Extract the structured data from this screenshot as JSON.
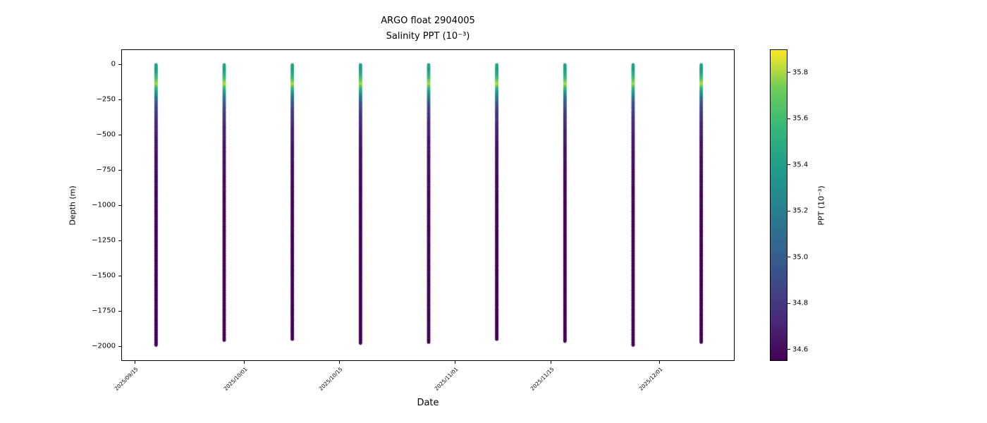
{
  "title": {
    "line1": "ARGO float 2904005",
    "line2": "Salinity PPT (10⁻³)"
  },
  "axes": {
    "x_label": "Date",
    "y_label": "Depth (m)",
    "x_ticks": [
      {
        "label": "2025/09/15",
        "day": 2
      },
      {
        "label": "2025/10/01",
        "day": 18
      },
      {
        "label": "2025/10/15",
        "day": 32
      },
      {
        "label": "2025/11/01",
        "day": 49
      },
      {
        "label": "2025/11/15",
        "day": 63
      },
      {
        "label": "2025/12/01",
        "day": 79
      }
    ],
    "y_ticks": [
      {
        "label": "0",
        "depth": 0
      },
      {
        "label": "−250",
        "depth": -250
      },
      {
        "label": "−500",
        "depth": -500
      },
      {
        "label": "−750",
        "depth": -750
      },
      {
        "label": "−1000",
        "depth": -1000
      },
      {
        "label": "−1250",
        "depth": -1250
      },
      {
        "label": "−1500",
        "depth": -1500
      },
      {
        "label": "−1750",
        "depth": -1750
      },
      {
        "label": "−2000",
        "depth": -2000
      }
    ]
  },
  "colorbar": {
    "label": "PPT (10⁻³)",
    "vmin": 34.55,
    "vmax": 35.9,
    "ticks": [
      {
        "label": "34.6",
        "value": 34.6
      },
      {
        "label": "34.8",
        "value": 34.8
      },
      {
        "label": "35.0",
        "value": 35.0
      },
      {
        "label": "35.2",
        "value": 35.2
      },
      {
        "label": "35.4",
        "value": 35.4
      },
      {
        "label": "35.6",
        "value": 35.6
      },
      {
        "label": "35.8",
        "value": 35.8
      }
    ]
  },
  "colors": {
    "background": "#ffffff",
    "text": "#000000",
    "axis": "#000000",
    "viridis_stops": [
      "#440154",
      "#482878",
      "#3e4a89",
      "#31688e",
      "#26828e",
      "#1f9e89",
      "#35b779",
      "#6dcd59",
      "#fde725"
    ]
  },
  "chart_data": {
    "type": "scatter",
    "title": "ARGO float 2904005",
    "subtitle": "Salinity PPT (10⁻³)",
    "xlabel": "Date",
    "ylabel": "Depth (m)",
    "colormap": "viridis",
    "vmin": 34.55,
    "vmax": 35.9,
    "x_range_days": [
      0,
      90
    ],
    "x_range_start_date": "2025/09/13",
    "y_range": [
      105,
      -2105
    ],
    "profiles": [
      {
        "date": "2025/09/18",
        "day": 5,
        "surface_depth": 0,
        "max_depth": -1990
      },
      {
        "date": "2025/09/28",
        "day": 15,
        "surface_depth": 0,
        "max_depth": -1955
      },
      {
        "date": "2025/10/08",
        "day": 25,
        "surface_depth": 0,
        "max_depth": -1950
      },
      {
        "date": "2025/10/18",
        "day": 35,
        "surface_depth": 0,
        "max_depth": -1975
      },
      {
        "date": "2025/10/28",
        "day": 45,
        "surface_depth": 0,
        "max_depth": -1970
      },
      {
        "date": "2025/11/07",
        "day": 55,
        "surface_depth": 0,
        "max_depth": -1950
      },
      {
        "date": "2025/11/17",
        "day": 65,
        "surface_depth": 0,
        "max_depth": -1965
      },
      {
        "date": "2025/11/27",
        "day": 75,
        "surface_depth": 0,
        "max_depth": -1990
      },
      {
        "date": "2025/12/07",
        "day": 85,
        "surface_depth": 0,
        "max_depth": -1970
      }
    ],
    "salinity_profile_control_points": {
      "depths": [
        0,
        -40,
        -90,
        -140,
        -180,
        -230,
        -280,
        -350,
        -450,
        -600,
        -900,
        -1400,
        -2000
      ],
      "salinity": [
        35.45,
        35.38,
        35.55,
        35.82,
        35.5,
        35.18,
        34.95,
        34.8,
        34.7,
        34.62,
        34.57,
        34.55,
        34.55
      ]
    }
  }
}
